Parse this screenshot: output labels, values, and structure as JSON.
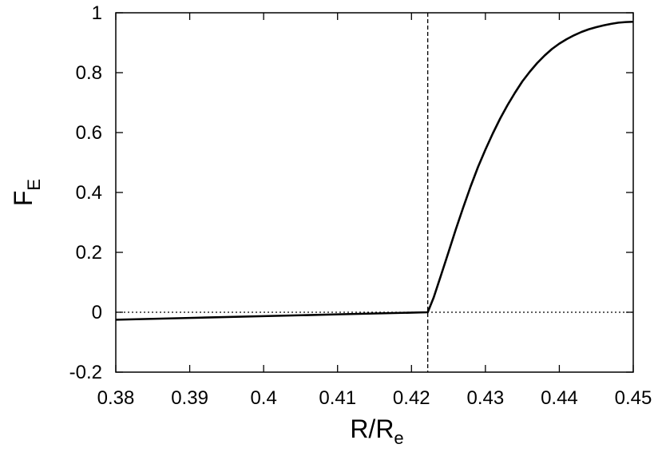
{
  "chart_data": {
    "type": "line",
    "xlabel": {
      "main": "R/R",
      "sub": "e"
    },
    "ylabel": {
      "main": "F",
      "sub": "E"
    },
    "xlim": [
      0.38,
      0.45
    ],
    "ylim": [
      -0.2,
      1
    ],
    "x_ticks": [
      {
        "value": 0.38,
        "label": "0.38"
      },
      {
        "value": 0.39,
        "label": "0.39"
      },
      {
        "value": 0.4,
        "label": "0.4"
      },
      {
        "value": 0.41,
        "label": "0.41"
      },
      {
        "value": 0.42,
        "label": "0.42"
      },
      {
        "value": 0.43,
        "label": "0.43"
      },
      {
        "value": 0.44,
        "label": "0.44"
      },
      {
        "value": 0.45,
        "label": "0.45"
      }
    ],
    "y_ticks": [
      {
        "value": -0.2,
        "label": "-0.2"
      },
      {
        "value": 0,
        "label": "0"
      },
      {
        "value": 0.2,
        "label": "0.2"
      },
      {
        "value": 0.4,
        "label": "0.4"
      },
      {
        "value": 0.6,
        "label": "0.6"
      },
      {
        "value": 0.8,
        "label": "0.8"
      },
      {
        "value": 1,
        "label": "1"
      }
    ],
    "reference_lines": {
      "horizontal_y": 0,
      "vertical_x": 0.4222
    },
    "series": [
      {
        "x": [
          0.38,
          0.39,
          0.4,
          0.41,
          0.4222,
          0.423,
          0.424,
          0.425,
          0.426,
          0.427,
          0.428,
          0.429,
          0.43,
          0.431,
          0.432,
          0.433,
          0.434,
          0.435,
          0.436,
          0.437,
          0.438,
          0.439,
          0.44,
          0.441,
          0.442,
          0.443,
          0.444,
          0.445,
          0.446,
          0.447,
          0.448,
          0.449,
          0.45
        ],
        "y": [
          -0.025,
          -0.019,
          -0.013,
          -0.007,
          0.0,
          0.049,
          0.124,
          0.2,
          0.277,
          0.35,
          0.42,
          0.485,
          0.543,
          0.597,
          0.647,
          0.692,
          0.733,
          0.771,
          0.803,
          0.832,
          0.857,
          0.879,
          0.897,
          0.912,
          0.925,
          0.936,
          0.945,
          0.952,
          0.958,
          0.963,
          0.967,
          0.969,
          0.97
        ]
      }
    ]
  }
}
